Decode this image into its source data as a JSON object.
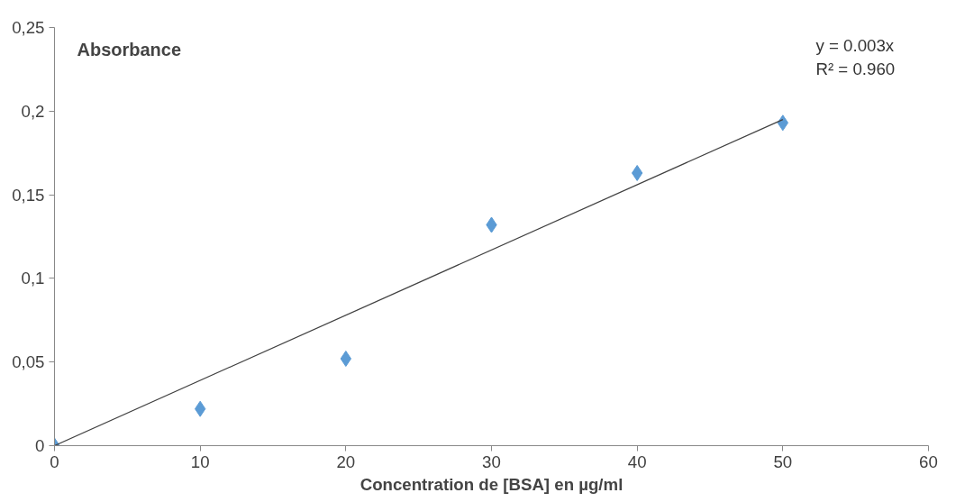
{
  "chart_data": {
    "type": "scatter",
    "title": "Absorbance",
    "xlabel": "Concentration de [BSA] en µg/ml",
    "x": [
      0,
      10,
      20,
      30,
      40,
      50
    ],
    "series": [
      {
        "color": "#5b9bd5",
        "marker": "diamond",
        "values": [
          0,
          0.022,
          0.052,
          0.132,
          0.163,
          0.193
        ]
      },
      {
        "type": "line",
        "color": "#404040",
        "x": [
          0,
          50
        ],
        "values": [
          0,
          0.195
        ]
      }
    ],
    "xlim": [
      0,
      60
    ],
    "xticks": [
      0,
      10,
      20,
      30,
      40,
      50,
      60
    ],
    "ylim": [
      0,
      0.25
    ],
    "yticks": [
      0,
      {
        "value": 0.05,
        "label": "0,05"
      },
      {
        "value": 0.1,
        "label": "0,1"
      },
      {
        "value": 0.15,
        "label": "0,15"
      },
      {
        "value": 0.2,
        "label": "0,2"
      },
      {
        "value": 0.25,
        "label": "0,25"
      }
    ],
    "annotations": [
      "y = 0.003x",
      "R² = 0.960"
    ],
    "grid": false
  }
}
